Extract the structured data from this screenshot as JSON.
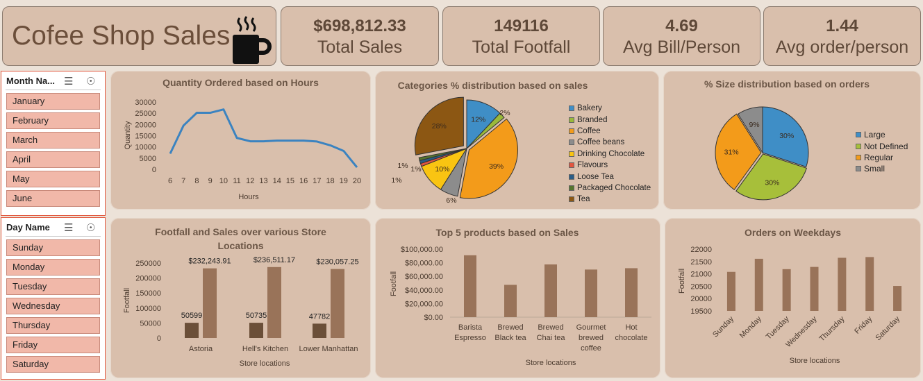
{
  "header": {
    "title": "Cofee Shop Sales",
    "kpis": [
      {
        "value": "$698,812.33",
        "label": "Total Sales"
      },
      {
        "value": "149116",
        "label": "Total Footfall"
      },
      {
        "value": "4.69",
        "label": "Avg Bill/Person"
      },
      {
        "value": "1.44",
        "label": "Avg order/person"
      }
    ]
  },
  "slicers": {
    "month": {
      "title": "Month Na...",
      "items": [
        "January",
        "February",
        "March",
        "April",
        "May",
        "June"
      ]
    },
    "day": {
      "title": "Day Name",
      "items": [
        "Sunday",
        "Monday",
        "Tuesday",
        "Wednesday",
        "Thursday",
        "Friday",
        "Saturday"
      ]
    }
  },
  "chart_data": [
    {
      "type": "line",
      "title": "Quantity Ordered based on Hours",
      "xlabel": "Hours",
      "ylabel": "Quantity",
      "x": [
        6,
        7,
        8,
        9,
        10,
        11,
        12,
        13,
        14,
        15,
        16,
        17,
        18,
        19,
        20
      ],
      "y": [
        7000,
        19500,
        25200,
        25200,
        26700,
        14000,
        12500,
        12500,
        12800,
        12800,
        12800,
        12400,
        10700,
        8200,
        900
      ],
      "yticks": [
        "0",
        "5000",
        "10000",
        "15000",
        "20000",
        "25000",
        "30000"
      ],
      "ylim": [
        0,
        30000
      ],
      "color": "#3b83c0"
    },
    {
      "type": "pie",
      "title": "Categories % distribution based on sales",
      "categories": [
        "Bakery",
        "Branded",
        "Coffee",
        "Coffee beans",
        "Drinking Chocolate",
        "Flavours",
        "Loose Tea",
        "Packaged Chocolate",
        "Tea"
      ],
      "values": [
        12,
        2,
        39,
        6,
        10,
        1,
        1,
        1,
        28
      ],
      "labels": [
        "12%",
        "2%",
        "39%",
        "6%",
        "10%",
        "1%",
        "1%",
        "1%",
        "28%"
      ],
      "colors": [
        "#3f8ec6",
        "#9ab93b",
        "#f39b1a",
        "#8c8c8c",
        "#f9c412",
        "#e2553f",
        "#2a5c86",
        "#56752e",
        "#8c5713"
      ],
      "legend": "right"
    },
    {
      "type": "pie",
      "title": "% Size distribution based on orders",
      "categories": [
        "Large",
        "Not Defined",
        "Regular",
        "Small"
      ],
      "values": [
        30,
        30,
        31,
        9
      ],
      "labels": [
        "30%",
        "30%",
        "31%",
        "9%"
      ],
      "colors": [
        "#3f8ec6",
        "#a7bf3a",
        "#f39b1a",
        "#8c8c8c"
      ],
      "legend": "right"
    },
    {
      "type": "bar",
      "title": "Footfall and Sales over various Store Locations",
      "xlabel": "Store locations",
      "ylabel": "Footfall",
      "categories": [
        "Astoria",
        "Hell's Kitchen",
        "Lower Manhattan"
      ],
      "series": [
        {
          "values": [
            50599,
            50735,
            47782
          ],
          "labels": [
            "50599",
            "50735",
            "47782"
          ],
          "color": "#6b4f38"
        },
        {
          "values": [
            232243.91,
            236511.17,
            230057.25
          ],
          "labels": [
            "$232,243.91",
            "$236,511.17",
            "$230,057.25"
          ],
          "color": "#997359"
        }
      ],
      "yticks": [
        "0",
        "50000",
        "100000",
        "150000",
        "200000",
        "250000"
      ],
      "ylim": [
        0,
        250000
      ]
    },
    {
      "type": "bar",
      "title": "Top 5 products based on Sales",
      "xlabel": "Store locations",
      "ylabel": "Footfall",
      "categories": [
        "Barista Espresso",
        "Brewed Black tea",
        "Brewed Chai tea",
        "Gourmet brewed coffee",
        "Hot chocolate"
      ],
      "category_lines": [
        [
          "Barista",
          "Espresso"
        ],
        [
          "Brewed",
          "Black tea"
        ],
        [
          "Brewed",
          "Chai tea"
        ],
        [
          "Gourmet",
          "brewed",
          "coffee"
        ],
        [
          "Hot",
          "chocolate"
        ]
      ],
      "values": [
        91000,
        47500,
        77500,
        70000,
        72000
      ],
      "yticks": [
        "$0.00",
        "$20,000.00",
        "$40,000.00",
        "$60,000.00",
        "$80,000.00",
        "$100,000.00"
      ],
      "ylim": [
        0,
        100000
      ],
      "color": "#997359"
    },
    {
      "type": "bar",
      "title": "Orders on Weekdays",
      "xlabel": "Store locations",
      "ylabel": "Footfall",
      "categories": [
        "Sunday",
        "Monday",
        "Tuesday",
        "Wednesday",
        "Thursday",
        "Friday",
        "Saturday"
      ],
      "values": [
        21080,
        21610,
        21190,
        21280,
        21650,
        21680,
        20510
      ],
      "yticks": [
        "19500",
        "20000",
        "20500",
        "21000",
        "21500",
        "22000"
      ],
      "ylim": [
        19500,
        22000
      ],
      "color": "#997359"
    }
  ]
}
